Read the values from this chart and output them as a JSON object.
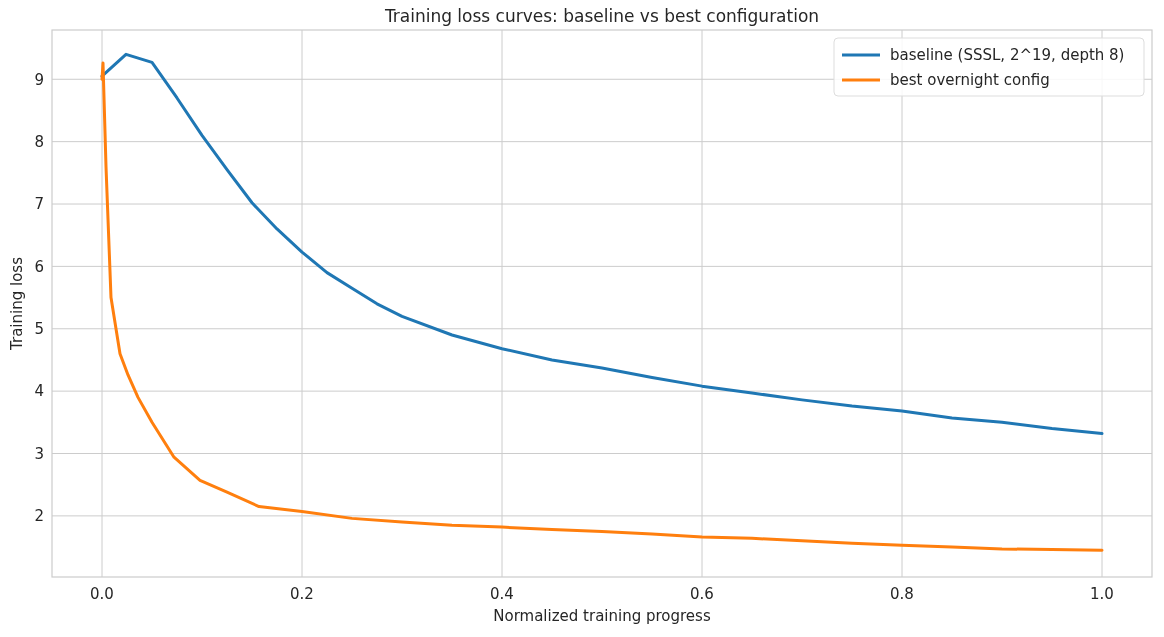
{
  "chart_data": {
    "type": "line",
    "title": "Training loss curves: baseline vs best configuration",
    "xlabel": "Normalized training progress",
    "ylabel": "Training loss",
    "xlim": [
      -0.05,
      1.05
    ],
    "ylim": [
      1.02,
      9.79
    ],
    "xticks": [
      {
        "value": 0,
        "label": "0.0"
      },
      {
        "value": 0.2,
        "label": "0.2"
      },
      {
        "value": 0.4,
        "label": "0.4"
      },
      {
        "value": 0.6,
        "label": "0.6"
      },
      {
        "value": 0.8,
        "label": "0.8"
      },
      {
        "value": 1,
        "label": "1.0"
      }
    ],
    "yticks": [
      2,
      3,
      4,
      5,
      6,
      7,
      8,
      9
    ],
    "grid": true,
    "legend": "top right",
    "line_style": "solid",
    "marker": "none",
    "series": [
      {
        "name": "baseline (SSSL, 2^19, depth 8)",
        "color": "#1f77b4",
        "x": [
          0,
          0.024,
          0.05,
          0.075,
          0.1,
          0.125,
          0.15,
          0.175,
          0.2,
          0.225,
          0.25,
          0.275,
          0.3,
          0.35,
          0.4,
          0.45,
          0.5,
          0.55,
          0.6,
          0.65,
          0.7,
          0.75,
          0.8,
          0.85,
          0.9,
          0.95,
          1.0
        ],
        "values": [
          9.05,
          9.4,
          9.27,
          8.7,
          8.1,
          7.55,
          7.02,
          6.6,
          6.23,
          5.9,
          5.65,
          5.4,
          5.2,
          4.9,
          4.68,
          4.5,
          4.37,
          4.22,
          4.08,
          3.97,
          3.86,
          3.76,
          3.68,
          3.57,
          3.5,
          3.4,
          3.32
        ]
      },
      {
        "name": "best overnight config",
        "color": "#ff7f0e",
        "x": [
          0,
          0.001,
          0.004,
          0.009,
          0.018,
          0.026,
          0.036,
          0.05,
          0.072,
          0.098,
          0.125,
          0.157,
          0.2,
          0.25,
          0.3,
          0.35,
          0.4,
          0.45,
          0.5,
          0.55,
          0.6,
          0.65,
          0.7,
          0.75,
          0.8,
          0.85,
          0.9,
          0.95,
          1.0
        ],
        "values": [
          9.0,
          9.26,
          7.6,
          5.5,
          4.6,
          4.26,
          3.9,
          3.5,
          2.94,
          2.57,
          2.38,
          2.15,
          2.07,
          1.96,
          1.9,
          1.85,
          1.82,
          1.78,
          1.75,
          1.71,
          1.66,
          1.64,
          1.6,
          1.56,
          1.53,
          1.5,
          1.47,
          1.46,
          1.45
        ]
      }
    ]
  }
}
